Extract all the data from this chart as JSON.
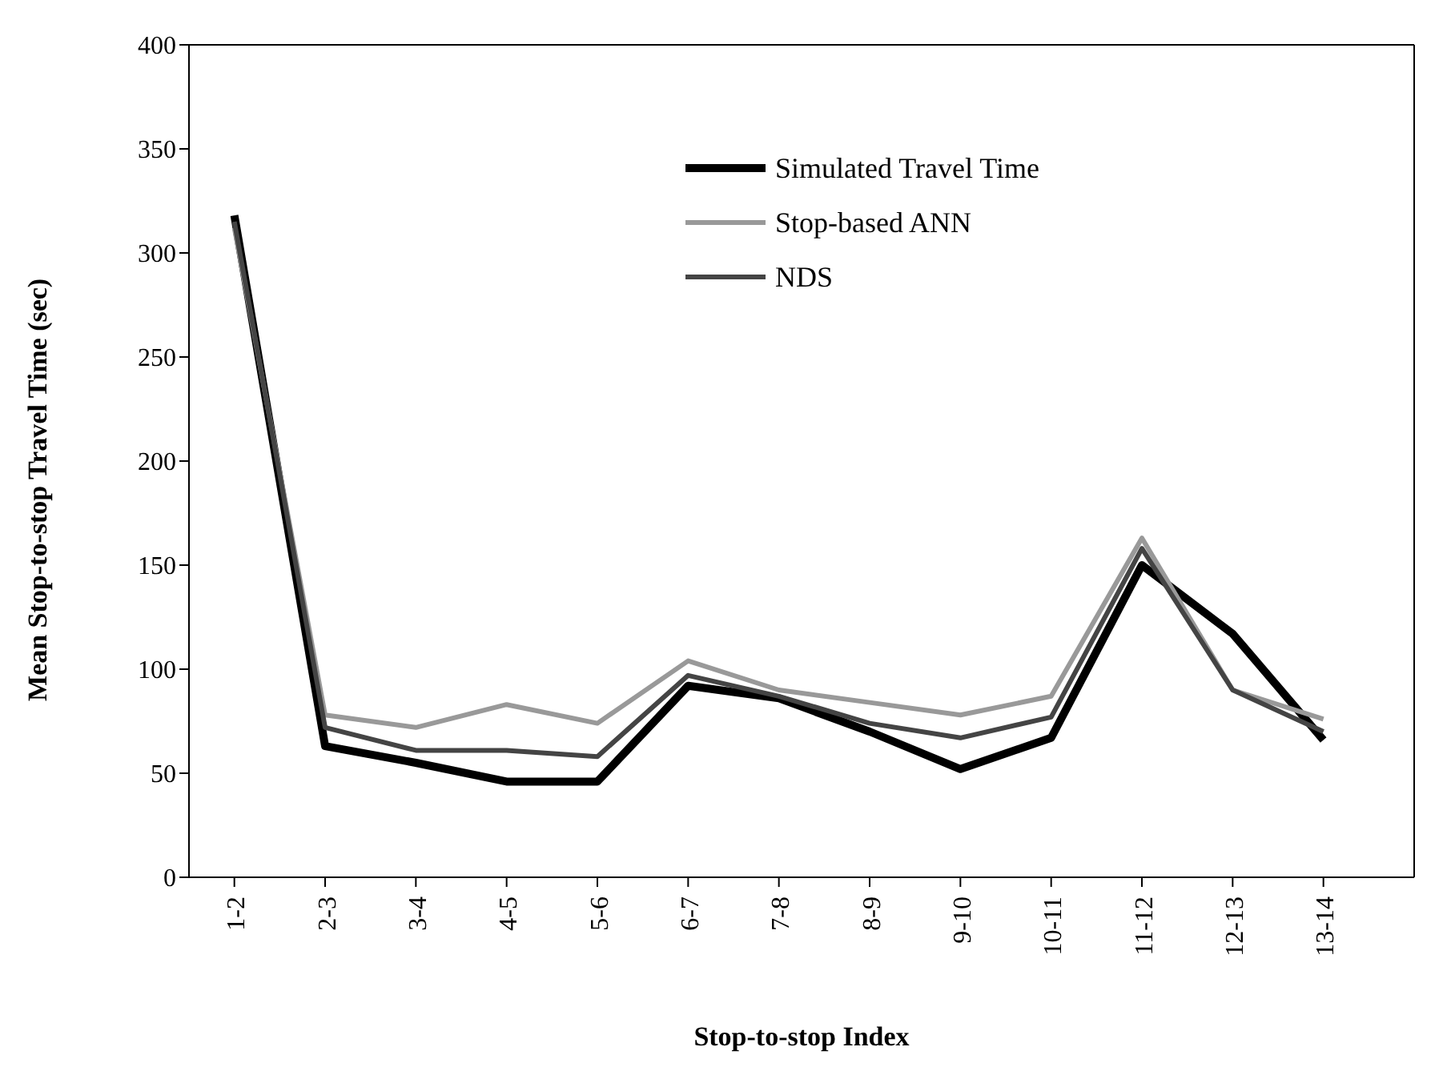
{
  "chart_data": {
    "type": "line",
    "xlabel": "Stop-to-stop Index",
    "ylabel": "Mean Stop-to-stop Travel Time (sec)",
    "categories": [
      "1-2",
      "2-3",
      "3-4",
      "4-5",
      "5-6",
      "6-7",
      "7-8",
      "8-9",
      "9-10",
      "10-11",
      "11-12",
      "12-13",
      "13-14"
    ],
    "series": [
      {
        "name": "Simulated Travel Time",
        "color": "#000000",
        "values": [
          318,
          63,
          55,
          46,
          46,
          92,
          86,
          70,
          52,
          67,
          150,
          117,
          66
        ]
      },
      {
        "name": "Stop-based ANN",
        "color": "#999999",
        "values": [
          312,
          78,
          72,
          83,
          74,
          104,
          90,
          84,
          78,
          87,
          163,
          90,
          76
        ]
      },
      {
        "name": "NDS",
        "color": "#444444",
        "values": [
          315,
          72,
          61,
          61,
          58,
          97,
          87,
          74,
          67,
          77,
          158,
          90,
          70
        ]
      }
    ],
    "ylim": [
      0,
      400
    ],
    "yticks": [
      0,
      50,
      100,
      150,
      200,
      250,
      300,
      350,
      400
    ],
    "grid": false,
    "legend": "top right",
    "marker": "none",
    "line_style": "solid"
  }
}
